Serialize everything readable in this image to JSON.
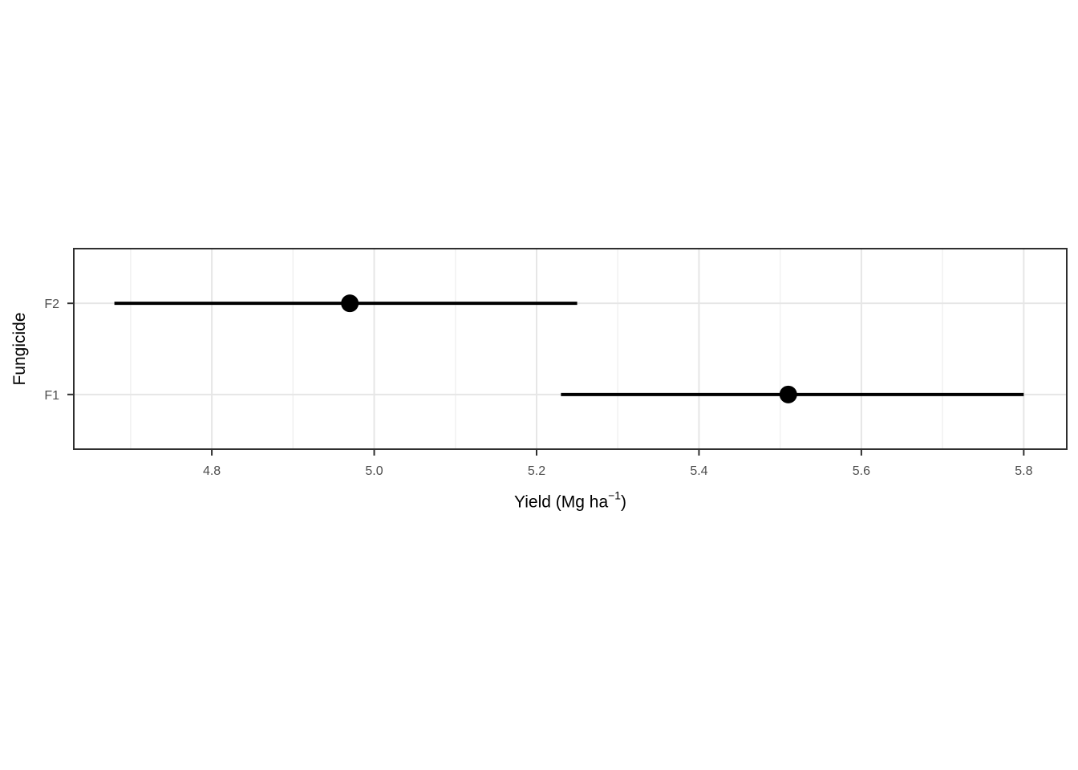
{
  "figure": {
    "background": "#ffffff",
    "panel": {
      "border_color": "#2f2f2f",
      "grid_major_color": "#e6e6e6",
      "grid_minor_color": "#f1f1f1",
      "tick_color": "#2f2f2f",
      "tick_label_color": "#4d4d4d",
      "axis_title_color": "#000000"
    }
  },
  "chart_data": {
    "type": "pointrange",
    "orientation": "horizontal",
    "title": "",
    "xlabel": "Yield (Mg ha⁻¹)",
    "xlabel_parts": {
      "prefix": "Yield (Mg ha",
      "sup": "−1",
      "suffix": ")"
    },
    "ylabel": "Fungicide",
    "categories": [
      "F2",
      "F1"
    ],
    "series": [
      {
        "category": "F2",
        "mean": 4.97,
        "lower": 4.68,
        "upper": 5.25
      },
      {
        "category": "F1",
        "mean": 5.51,
        "lower": 5.23,
        "upper": 5.8
      }
    ],
    "x_ticks": [
      4.8,
      5.0,
      5.2,
      5.4,
      5.6,
      5.8
    ],
    "x_minor_ticks": [
      4.7,
      4.9,
      5.1,
      5.3,
      5.5,
      5.7
    ],
    "xlim": [
      4.63,
      5.853
    ],
    "grid": true,
    "legend": "none",
    "point_color": "#000000",
    "range_color": "#000000"
  }
}
